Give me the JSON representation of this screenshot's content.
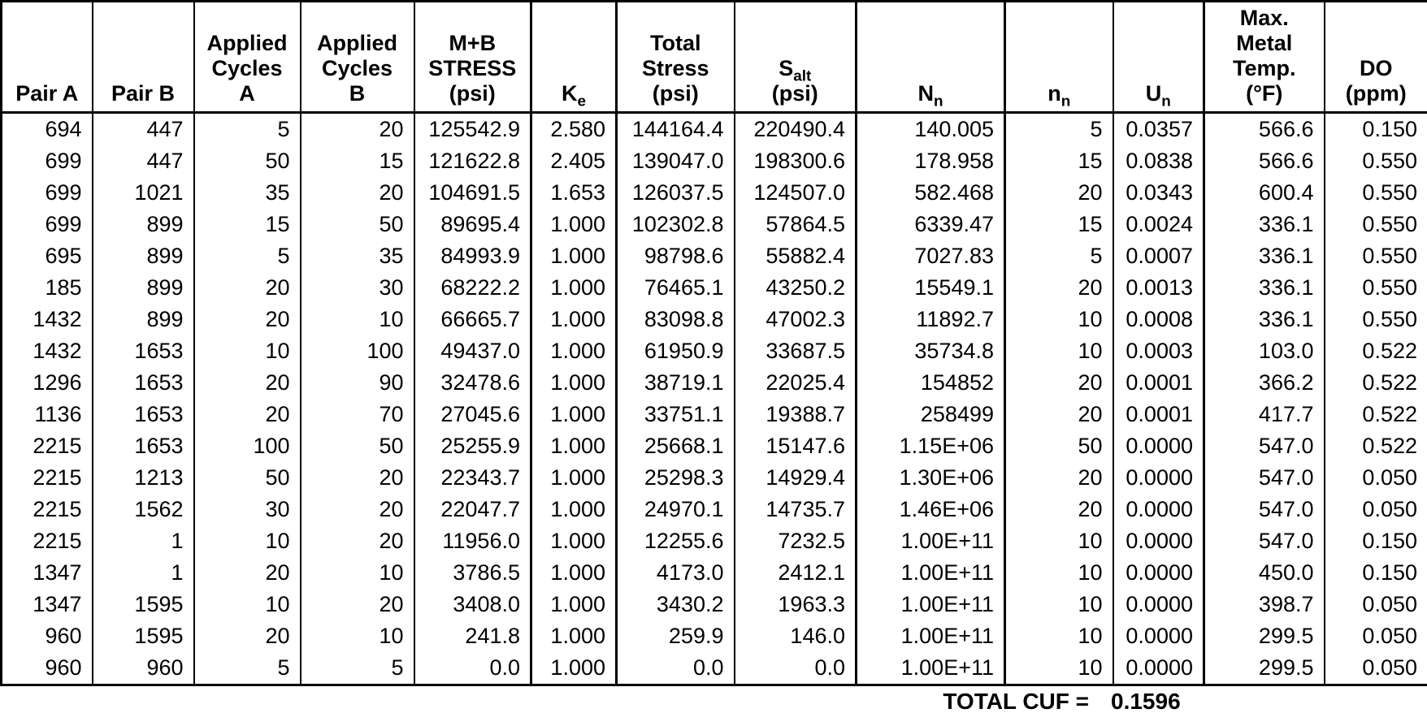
{
  "table": {
    "columns": [
      {
        "id": "pair-a",
        "header": "Pair A"
      },
      {
        "id": "pair-b",
        "header": "Pair B"
      },
      {
        "id": "applied-cycles-a",
        "header": "Applied\nCycles\nA"
      },
      {
        "id": "applied-cycles-b",
        "header": "Applied\nCycles\nB"
      },
      {
        "id": "mb-stress",
        "header": "M+B\nSTRESS\n(psi)"
      },
      {
        "id": "ke",
        "header": "K_{e}"
      },
      {
        "id": "total-stress",
        "header": "Total\nStress\n(psi)"
      },
      {
        "id": "s-alt",
        "header": "S_{alt}\n(psi)"
      },
      {
        "id": "n-allowable",
        "header": "N_{n}"
      },
      {
        "id": "n-applied",
        "header": "n_{n}"
      },
      {
        "id": "u-n",
        "header": "U_{n}"
      },
      {
        "id": "max-metal-temp",
        "header": "Max.\nMetal\nTemp.\n(°F)"
      },
      {
        "id": "do-ppm",
        "header": "DO\n(ppm)"
      }
    ],
    "rows": [
      [
        "694",
        "447",
        "5",
        "20",
        "125542.9",
        "2.580",
        "144164.4",
        "220490.4",
        "140.005",
        "5",
        "0.0357",
        "566.6",
        "0.150"
      ],
      [
        "699",
        "447",
        "50",
        "15",
        "121622.8",
        "2.405",
        "139047.0",
        "198300.6",
        "178.958",
        "15",
        "0.0838",
        "566.6",
        "0.550"
      ],
      [
        "699",
        "1021",
        "35",
        "20",
        "104691.5",
        "1.653",
        "126037.5",
        "124507.0",
        "582.468",
        "20",
        "0.0343",
        "600.4",
        "0.550"
      ],
      [
        "699",
        "899",
        "15",
        "50",
        "89695.4",
        "1.000",
        "102302.8",
        "57864.5",
        "6339.47",
        "15",
        "0.0024",
        "336.1",
        "0.550"
      ],
      [
        "695",
        "899",
        "5",
        "35",
        "84993.9",
        "1.000",
        "98798.6",
        "55882.4",
        "7027.83",
        "5",
        "0.0007",
        "336.1",
        "0.550"
      ],
      [
        "185",
        "899",
        "20",
        "30",
        "68222.2",
        "1.000",
        "76465.1",
        "43250.2",
        "15549.1",
        "20",
        "0.0013",
        "336.1",
        "0.550"
      ],
      [
        "1432",
        "899",
        "20",
        "10",
        "66665.7",
        "1.000",
        "83098.8",
        "47002.3",
        "11892.7",
        "10",
        "0.0008",
        "336.1",
        "0.550"
      ],
      [
        "1432",
        "1653",
        "10",
        "100",
        "49437.0",
        "1.000",
        "61950.9",
        "33687.5",
        "35734.8",
        "10",
        "0.0003",
        "103.0",
        "0.522"
      ],
      [
        "1296",
        "1653",
        "20",
        "90",
        "32478.6",
        "1.000",
        "38719.1",
        "22025.4",
        "154852",
        "20",
        "0.0001",
        "366.2",
        "0.522"
      ],
      [
        "1136",
        "1653",
        "20",
        "70",
        "27045.6",
        "1.000",
        "33751.1",
        "19388.7",
        "258499",
        "20",
        "0.0001",
        "417.7",
        "0.522"
      ],
      [
        "2215",
        "1653",
        "100",
        "50",
        "25255.9",
        "1.000",
        "25668.1",
        "15147.6",
        "1.15E+06",
        "50",
        "0.0000",
        "547.0",
        "0.522"
      ],
      [
        "2215",
        "1213",
        "50",
        "20",
        "22343.7",
        "1.000",
        "25298.3",
        "14929.4",
        "1.30E+06",
        "20",
        "0.0000",
        "547.0",
        "0.050"
      ],
      [
        "2215",
        "1562",
        "30",
        "20",
        "22047.7",
        "1.000",
        "24970.1",
        "14735.7",
        "1.46E+06",
        "20",
        "0.0000",
        "547.0",
        "0.050"
      ],
      [
        "2215",
        "1",
        "10",
        "20",
        "11956.0",
        "1.000",
        "12255.6",
        "7232.5",
        "1.00E+11",
        "10",
        "0.0000",
        "547.0",
        "0.150"
      ],
      [
        "1347",
        "1",
        "20",
        "10",
        "3786.5",
        "1.000",
        "4173.0",
        "2412.1",
        "1.00E+11",
        "10",
        "0.0000",
        "450.0",
        "0.150"
      ],
      [
        "1347",
        "1595",
        "10",
        "20",
        "3408.0",
        "1.000",
        "3430.2",
        "1963.3",
        "1.00E+11",
        "10",
        "0.0000",
        "398.7",
        "0.050"
      ],
      [
        "960",
        "1595",
        "20",
        "10",
        "241.8",
        "1.000",
        "259.9",
        "146.0",
        "1.00E+11",
        "10",
        "0.0000",
        "299.5",
        "0.050"
      ],
      [
        "960",
        "960",
        "5",
        "5",
        "0.0",
        "1.000",
        "0.0",
        "0.0",
        "1.00E+11",
        "10",
        "0.0000",
        "299.5",
        "0.050"
      ]
    ],
    "footer": {
      "label": "TOTAL CUF =",
      "value": "0.1596"
    }
  }
}
